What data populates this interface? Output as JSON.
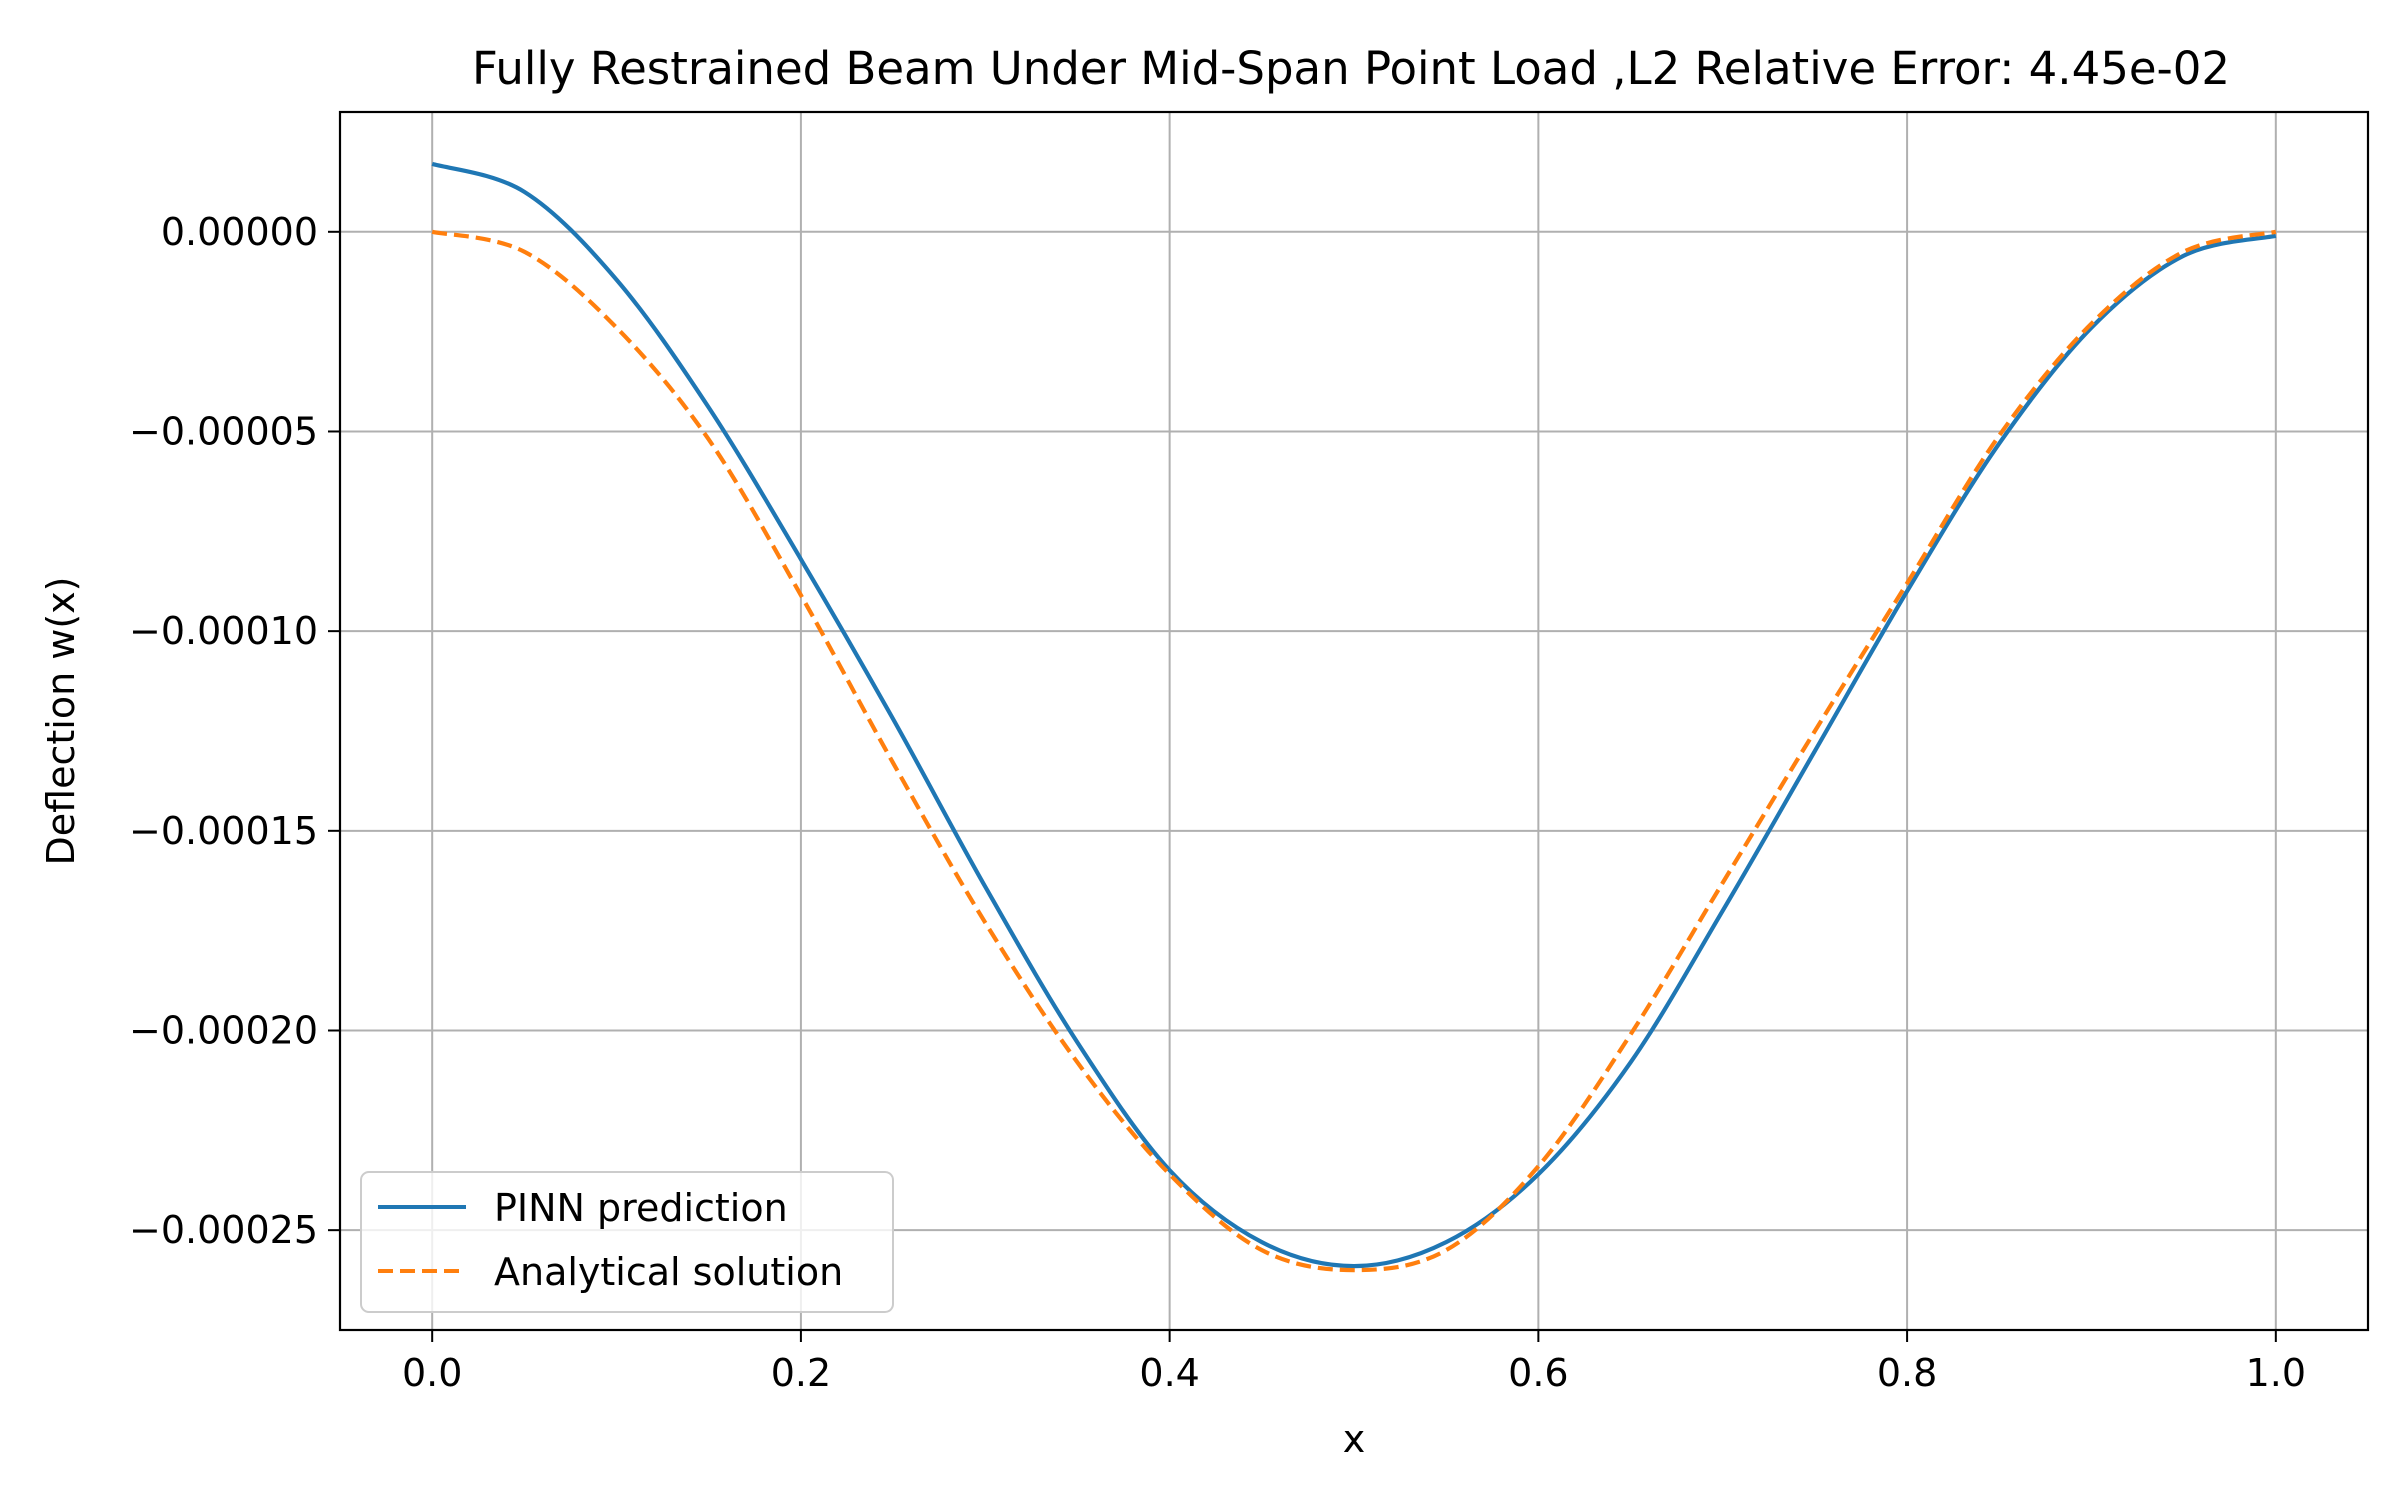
{
  "chart_data": {
    "type": "line",
    "title": "Fully Restrained Beam Under Mid-Span Point Load ,L2 Relative Error: 4.45e-02",
    "xlabel": "x",
    "ylabel": "Deflection w(x)",
    "xlim": [
      -0.05,
      1.05
    ],
    "ylim": [
      -0.000275,
      3e-05
    ],
    "grid": true,
    "legend_position": "lower-left",
    "x_ticks": [
      0.0,
      0.2,
      0.4,
      0.6,
      0.8,
      1.0
    ],
    "x_tick_labels": [
      "0.0",
      "0.2",
      "0.4",
      "0.6",
      "0.8",
      "1.0"
    ],
    "y_ticks": [
      0.0,
      -5e-05,
      -0.0001,
      -0.00015,
      -0.0002,
      -0.00025
    ],
    "y_tick_labels": [
      "0.00000",
      "−0.00005",
      "−0.00010",
      "−0.00015",
      "−0.00020",
      "−0.00025"
    ],
    "x": [
      0.0,
      0.05,
      0.1,
      0.15,
      0.2,
      0.25,
      0.3,
      0.35,
      0.4,
      0.45,
      0.5,
      0.55,
      0.6,
      0.65,
      0.7,
      0.75,
      0.8,
      0.85,
      0.9,
      0.95,
      1.0
    ],
    "series": [
      {
        "name": "PINN prediction",
        "color": "#1f77b4",
        "dash": "solid",
        "values": [
          1.7e-05,
          1e-05,
          -1.2e-05,
          -4.4e-05,
          -8.2e-05,
          -0.000122,
          -0.000164,
          -0.000203,
          -0.000235,
          -0.000253,
          -0.000259,
          -0.000253,
          -0.000236,
          -0.000208,
          -0.00017,
          -0.00013,
          -9e-05,
          -5.3e-05,
          -2.4e-05,
          -6e-06,
          -1e-06
        ]
      },
      {
        "name": "Analytical solution",
        "color": "#ff7f0e",
        "dash": "dashed",
        "values": [
          0.0,
          -5e-06,
          -2.4e-05,
          -5.2e-05,
          -9.1e-05,
          -0.000133,
          -0.000173,
          -0.000208,
          -0.000236,
          -0.000255,
          -0.00026,
          -0.000255,
          -0.000234,
          -0.000201,
          -0.000163,
          -0.000125,
          -8.8e-05,
          -5.1e-05,
          -2.3e-05,
          -5e-06,
          0.0
        ]
      }
    ]
  }
}
